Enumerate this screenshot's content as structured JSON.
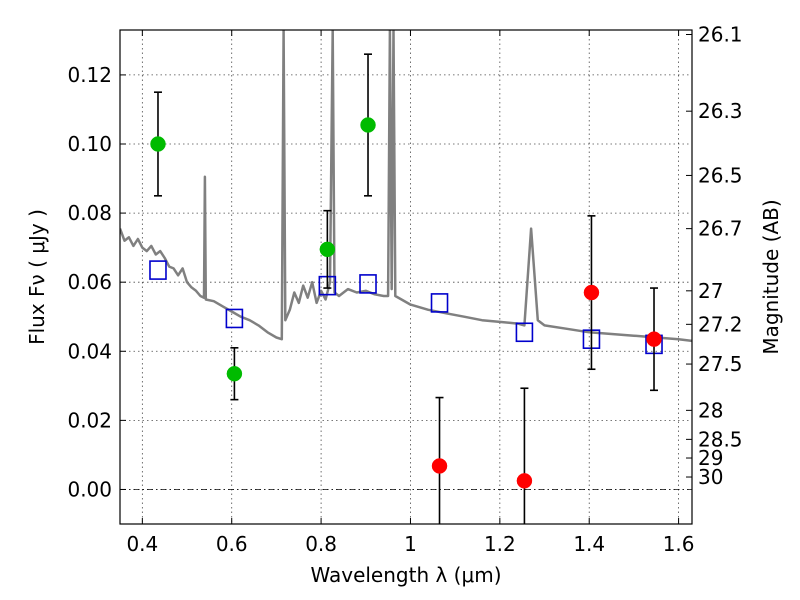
{
  "chart_data": {
    "type": "scatter",
    "title": "",
    "xlabel": "Wavelength  λ (μm)",
    "ylabel": "Flux  Fν  ( μJy )",
    "ylabel_right": "Magnitude (AB)",
    "xlim": [
      0.35,
      1.63
    ],
    "ylim": [
      -0.01,
      0.133
    ],
    "grid": true,
    "x_ticks": [
      0.4,
      0.6,
      0.8,
      1.0,
      1.2,
      1.4,
      1.6
    ],
    "x_tick_labels": [
      "0.4",
      "0.6",
      "0.8",
      "1",
      "1.2",
      "1.4",
      "1.6"
    ],
    "y_ticks": [
      0.0,
      0.02,
      0.04,
      0.06,
      0.08,
      0.1,
      0.12
    ],
    "y_tick_labels": [
      "0.00",
      "0.02",
      "0.04",
      "0.06",
      "0.08",
      "0.10",
      "0.12"
    ],
    "right_ticks": [
      {
        "label": "26.1",
        "flux": 0.1317
      },
      {
        "label": "26.3",
        "flux": 0.1095
      },
      {
        "label": "26.5",
        "flux": 0.0909
      },
      {
        "label": "26.7",
        "flux": 0.0755
      },
      {
        "label": "27",
        "flux": 0.0575
      },
      {
        "label": "27.2",
        "flux": 0.0478
      },
      {
        "label": "27.5",
        "flux": 0.0363
      },
      {
        "label": "28",
        "flux": 0.0229
      },
      {
        "label": "28.5",
        "flux": 0.0145
      },
      {
        "label": "29",
        "flux": 0.0091
      },
      {
        "label": "30",
        "flux": 0.0036
      }
    ],
    "series": [
      {
        "role": "green-detections",
        "color": "#00bb00",
        "points": [
          {
            "x": 0.435,
            "y": 0.1,
            "err": 0.015
          },
          {
            "x": 0.606,
            "y": 0.0335,
            "err": 0.0075
          },
          {
            "x": 0.814,
            "y": 0.0695,
            "err": 0.0112
          },
          {
            "x": 0.905,
            "y": 0.1055,
            "err": 0.0205
          }
        ]
      },
      {
        "role": "red-detections",
        "color": "#ff0000",
        "points": [
          {
            "x": 1.065,
            "y": 0.0068,
            "err": 0.0198
          },
          {
            "x": 1.255,
            "y": 0.0025,
            "err": 0.0268
          },
          {
            "x": 1.405,
            "y": 0.057,
            "err": 0.0222
          },
          {
            "x": 1.545,
            "y": 0.0435,
            "err": 0.0148
          }
        ]
      },
      {
        "role": "model-photometry",
        "color": "#0000cc",
        "points": [
          {
            "x": 0.435,
            "y": 0.0635
          },
          {
            "x": 0.606,
            "y": 0.0495
          },
          {
            "x": 0.814,
            "y": 0.059
          },
          {
            "x": 0.905,
            "y": 0.0595
          },
          {
            "x": 1.065,
            "y": 0.054
          },
          {
            "x": 1.255,
            "y": 0.0455
          },
          {
            "x": 1.405,
            "y": 0.0435
          },
          {
            "x": 1.545,
            "y": 0.042
          }
        ]
      },
      {
        "role": "template-spectrum",
        "color": "#808080",
        "points": [
          [
            0.35,
            0.0755
          ],
          [
            0.36,
            0.072
          ],
          [
            0.37,
            0.073
          ],
          [
            0.38,
            0.0705
          ],
          [
            0.39,
            0.0725
          ],
          [
            0.4,
            0.07
          ],
          [
            0.41,
            0.069
          ],
          [
            0.42,
            0.0705
          ],
          [
            0.43,
            0.068
          ],
          [
            0.44,
            0.069
          ],
          [
            0.45,
            0.067
          ],
          [
            0.46,
            0.0645
          ],
          [
            0.47,
            0.064
          ],
          [
            0.48,
            0.062
          ],
          [
            0.49,
            0.064
          ],
          [
            0.5,
            0.06
          ],
          [
            0.51,
            0.0585
          ],
          [
            0.52,
            0.0575
          ],
          [
            0.53,
            0.056
          ],
          [
            0.538,
            0.0555
          ],
          [
            0.54,
            0.0905
          ],
          [
            0.542,
            0.055
          ],
          [
            0.56,
            0.0545
          ],
          [
            0.58,
            0.053
          ],
          [
            0.6,
            0.0515
          ],
          [
            0.62,
            0.05
          ],
          [
            0.64,
            0.049
          ],
          [
            0.66,
            0.0475
          ],
          [
            0.68,
            0.0455
          ],
          [
            0.7,
            0.044
          ],
          [
            0.712,
            0.0435
          ],
          [
            0.716,
            0.133
          ],
          [
            0.72,
            0.049
          ],
          [
            0.73,
            0.052
          ],
          [
            0.74,
            0.057
          ],
          [
            0.75,
            0.054
          ],
          [
            0.76,
            0.059
          ],
          [
            0.77,
            0.0555
          ],
          [
            0.78,
            0.06
          ],
          [
            0.79,
            0.054
          ],
          [
            0.8,
            0.0575
          ],
          [
            0.81,
            0.055
          ],
          [
            0.82,
            0.06
          ],
          [
            0.826,
            0.133
          ],
          [
            0.83,
            0.057
          ],
          [
            0.84,
            0.056
          ],
          [
            0.86,
            0.058
          ],
          [
            0.88,
            0.057
          ],
          [
            0.9,
            0.0575
          ],
          [
            0.92,
            0.0565
          ],
          [
            0.94,
            0.056
          ],
          [
            0.95,
            0.056
          ],
          [
            0.954,
            0.133
          ],
          [
            0.958,
            0.058
          ],
          [
            0.962,
            0.133
          ],
          [
            0.966,
            0.056
          ],
          [
            0.98,
            0.055
          ],
          [
            1.0,
            0.0535
          ],
          [
            1.04,
            0.052
          ],
          [
            1.08,
            0.051
          ],
          [
            1.12,
            0.05
          ],
          [
            1.16,
            0.049
          ],
          [
            1.2,
            0.0485
          ],
          [
            1.24,
            0.048
          ],
          [
            1.255,
            0.0475
          ],
          [
            1.27,
            0.0755
          ],
          [
            1.285,
            0.049
          ],
          [
            1.3,
            0.0475
          ],
          [
            1.35,
            0.0465
          ],
          [
            1.4,
            0.0455
          ],
          [
            1.45,
            0.045
          ],
          [
            1.5,
            0.0445
          ],
          [
            1.55,
            0.044
          ],
          [
            1.6,
            0.0435
          ],
          [
            1.63,
            0.043
          ]
        ]
      }
    ],
    "reference_lines": [
      {
        "y": 0.0,
        "style": "dash-dot"
      }
    ]
  }
}
